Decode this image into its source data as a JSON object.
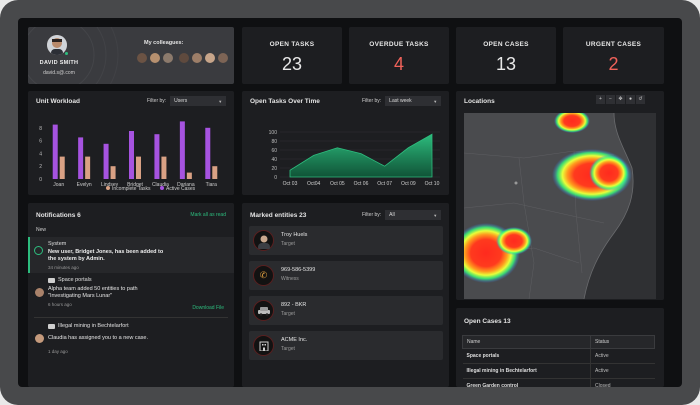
{
  "profile": {
    "name": "DAVID SMITH",
    "email": "david.s@.com",
    "colleagues_label": "My colleagues:"
  },
  "stats": [
    {
      "label": "OPEN TASKS",
      "value": "23"
    },
    {
      "label": "OVERDUE TASKS",
      "value": "4"
    },
    {
      "label": "OPEN CASES",
      "value": "13"
    },
    {
      "label": "URGENT CASES",
      "value": "2"
    }
  ],
  "workload": {
    "title": "Unit Workload",
    "filter_label": "Filter by:",
    "filter_value": "Users",
    "legend": [
      "Incomplete Tasks",
      "Active Cases"
    ]
  },
  "tasks_over_time": {
    "title": "Open Tasks Over Time",
    "filter_label": "Filter by:",
    "filter_value": "Last week"
  },
  "locations": {
    "title": "Locations"
  },
  "notifications": {
    "title": "Notifications 6",
    "mark_all": "Mark all as read",
    "new_label": "New",
    "items": [
      {
        "title": "System",
        "body": "New user, Bridget Jones, has been added to the system by Admin.",
        "time": "34 minutes ago"
      },
      {
        "title": "Space portals",
        "body": "Alpha team added 50 entities to path \"Investigating Mars Lunar\"",
        "time": "6 hours ago",
        "action": "Download File"
      },
      {
        "title": "Illegal mining in Bechtelarfort",
        "body": "Claudia has assigned you to a new case.",
        "time": "1 day ago"
      }
    ]
  },
  "entities": {
    "title": "Marked entities 23",
    "filter_label": "Filter by:",
    "filter_value": "All",
    "items": [
      {
        "name": "Troy Huels",
        "type": "Target",
        "icon": "person-avatar"
      },
      {
        "name": "969-586-5399",
        "type": "Witness",
        "icon": "phone-icon"
      },
      {
        "name": "892 - BKR",
        "type": "Target",
        "icon": "car-icon"
      },
      {
        "name": "ACME Inc.",
        "type": "Target",
        "icon": "building-icon"
      }
    ]
  },
  "open_cases": {
    "title": "Open Cases 13",
    "columns": [
      "Name",
      "Status"
    ],
    "rows": [
      {
        "name": "Space portals",
        "status": "Active"
      },
      {
        "name": "Illegal mining in Bechtelarfort",
        "status": "Active"
      },
      {
        "name": "Green Garden control",
        "status": "Closed"
      }
    ]
  },
  "chart_data": [
    {
      "type": "bar",
      "categories": [
        "Joan",
        "Evelyn",
        "Lindsey",
        "Bridget",
        "Claudia",
        "Dariana",
        "Tiara"
      ],
      "series": [
        {
          "name": "Incomplete Tasks",
          "values": [
            3.5,
            3.5,
            2,
            3.5,
            3.5,
            1,
            2
          ]
        },
        {
          "name": "Active Cases",
          "values": [
            8.5,
            6.5,
            5.5,
            7.5,
            7,
            9,
            8
          ]
        }
      ],
      "ylim": [
        0,
        10
      ],
      "yticks": [
        "0",
        "2",
        "4",
        "6",
        "8"
      ],
      "legend_position": "bottom",
      "colors": {
        "Incomplete Tasks": "#d9a184",
        "Active Cases": "#a653e0"
      }
    },
    {
      "type": "area",
      "x": [
        "Oct 03",
        "Oct04",
        "Oct 05",
        "Oct 06",
        "Oct 07",
        "Oct 09",
        "Oct 10"
      ],
      "values": [
        15,
        48,
        65,
        52,
        24,
        65,
        95
      ],
      "ylim": [
        0,
        100
      ],
      "yticks": [
        "0",
        "20",
        "40",
        "60",
        "80",
        "100"
      ],
      "color": "#2dbd7e"
    }
  ]
}
